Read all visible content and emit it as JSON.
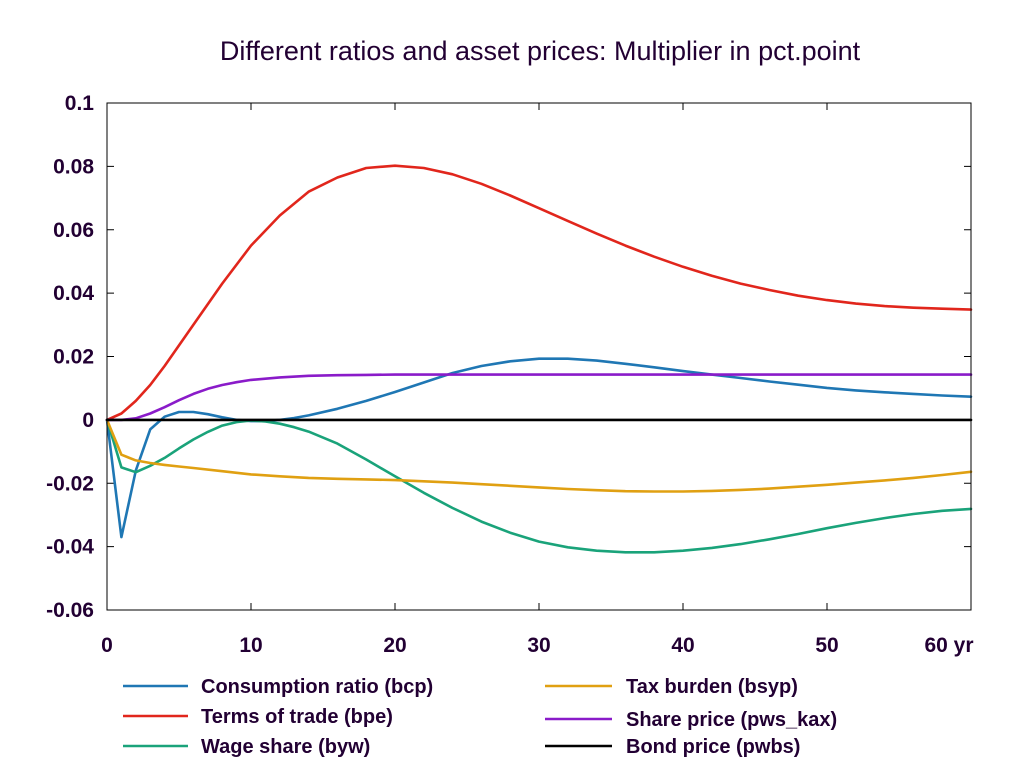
{
  "chart_data": {
    "type": "line",
    "title": "Different ratios and asset prices: Multiplier in pct.point",
    "xlabel": "",
    "ylabel": "",
    "xlim": [
      0,
      60
    ],
    "ylim": [
      -0.06,
      0.1
    ],
    "x_ticks": [
      0,
      10,
      20,
      30,
      40,
      50,
      60
    ],
    "x_tick_labels": [
      "0",
      "10",
      "20",
      "30",
      "40",
      "50",
      "60 yr"
    ],
    "y_ticks": [
      -0.06,
      -0.04,
      -0.02,
      0,
      0.02,
      0.04,
      0.06,
      0.08,
      0.1
    ],
    "y_tick_labels": [
      "-0.06",
      "-0.04",
      "-0.02",
      "0",
      "0.02",
      "0.04",
      "0.06",
      "0.08",
      "0.1"
    ],
    "grid": false,
    "legend_position": "bottom",
    "series": [
      {
        "name": "Consumption ratio (bcp)",
        "color": "#1f77b4",
        "x": [
          0,
          1,
          2,
          3,
          4,
          5,
          6,
          7,
          8,
          9,
          10,
          11,
          12,
          13,
          14,
          16,
          18,
          20,
          22,
          24,
          26,
          28,
          30,
          32,
          34,
          36,
          38,
          40,
          42,
          44,
          46,
          48,
          50,
          52,
          54,
          56,
          58,
          60
        ],
        "y": [
          0,
          -0.037,
          -0.016,
          -0.003,
          0.001,
          0.0025,
          0.0025,
          0.0018,
          0.0008,
          0.0,
          -0.0004,
          -0.0004,
          0.0,
          0.0006,
          0.0014,
          0.0035,
          0.006,
          0.0088,
          0.0118,
          0.0148,
          0.017,
          0.0185,
          0.0193,
          0.0193,
          0.0187,
          0.0177,
          0.0166,
          0.0154,
          0.0143,
          0.0132,
          0.0121,
          0.0111,
          0.0101,
          0.0093,
          0.0087,
          0.0082,
          0.0077,
          0.0073
        ]
      },
      {
        "name": "Terms of trade (bpe)",
        "color": "#e1261c",
        "x": [
          0,
          1,
          2,
          3,
          4,
          6,
          8,
          10,
          12,
          14,
          16,
          18,
          20,
          22,
          24,
          26,
          28,
          30,
          32,
          34,
          36,
          38,
          40,
          42,
          44,
          46,
          48,
          50,
          52,
          54,
          56,
          58,
          60
        ],
        "y": [
          0,
          0.002,
          0.006,
          0.011,
          0.017,
          0.03,
          0.043,
          0.055,
          0.0645,
          0.072,
          0.0765,
          0.0795,
          0.0802,
          0.0795,
          0.0775,
          0.0745,
          0.0708,
          0.0668,
          0.0628,
          0.0588,
          0.055,
          0.0515,
          0.0483,
          0.0455,
          0.043,
          0.041,
          0.0392,
          0.0378,
          0.0367,
          0.0359,
          0.0354,
          0.0351,
          0.0348
        ]
      },
      {
        "name": "Wage share (byw)",
        "color": "#1aa37a",
        "x": [
          0,
          1,
          2,
          3,
          4,
          5,
          6,
          7,
          8,
          9,
          10,
          11,
          12,
          13,
          14,
          16,
          18,
          20,
          22,
          24,
          26,
          28,
          30,
          32,
          34,
          36,
          38,
          40,
          42,
          44,
          46,
          48,
          50,
          52,
          54,
          56,
          58,
          60
        ],
        "y": [
          0,
          -0.015,
          -0.0165,
          -0.0145,
          -0.012,
          -0.009,
          -0.0062,
          -0.0038,
          -0.0018,
          -0.0007,
          -0.0002,
          -0.0005,
          -0.0012,
          -0.0023,
          -0.0037,
          -0.0075,
          -0.0125,
          -0.0178,
          -0.023,
          -0.0278,
          -0.0321,
          -0.0356,
          -0.0384,
          -0.0402,
          -0.0413,
          -0.0418,
          -0.0418,
          -0.0413,
          -0.0404,
          -0.0392,
          -0.0377,
          -0.036,
          -0.0342,
          -0.0325,
          -0.031,
          -0.0297,
          -0.0287,
          -0.0281
        ]
      },
      {
        "name": "Tax burden (bsyp)",
        "color": "#e0a012",
        "x": [
          0,
          1,
          2,
          3,
          4,
          5,
          6,
          8,
          10,
          12,
          14,
          16,
          18,
          20,
          22,
          24,
          26,
          28,
          30,
          32,
          34,
          36,
          38,
          40,
          42,
          44,
          46,
          48,
          50,
          52,
          54,
          56,
          58,
          60
        ],
        "y": [
          0,
          -0.011,
          -0.0128,
          -0.0136,
          -0.0142,
          -0.0147,
          -0.0152,
          -0.0162,
          -0.0172,
          -0.0178,
          -0.0183,
          -0.0186,
          -0.0188,
          -0.019,
          -0.0194,
          -0.0198,
          -0.0203,
          -0.0208,
          -0.0213,
          -0.0218,
          -0.0222,
          -0.0225,
          -0.0226,
          -0.0226,
          -0.0224,
          -0.0221,
          -0.0217,
          -0.0211,
          -0.0205,
          -0.0198,
          -0.0191,
          -0.0183,
          -0.0174,
          -0.0164
        ]
      },
      {
        "name": "Share price (pws_kax)",
        "color": "#8a1bc9",
        "x": [
          0,
          1,
          2,
          3,
          4,
          5,
          6,
          7,
          8,
          9,
          10,
          12,
          14,
          16,
          18,
          20,
          25,
          30,
          40,
          50,
          60
        ],
        "y": [
          0,
          0,
          0.0005,
          0.002,
          0.004,
          0.0062,
          0.0082,
          0.0098,
          0.011,
          0.0119,
          0.0126,
          0.0134,
          0.0139,
          0.0141,
          0.0142,
          0.0143,
          0.0143,
          0.0143,
          0.0143,
          0.0143,
          0.0143
        ]
      },
      {
        "name": "Bond price (pwbs)",
        "color": "#000000",
        "x": [
          0,
          60
        ],
        "y": [
          0,
          0
        ]
      }
    ]
  }
}
